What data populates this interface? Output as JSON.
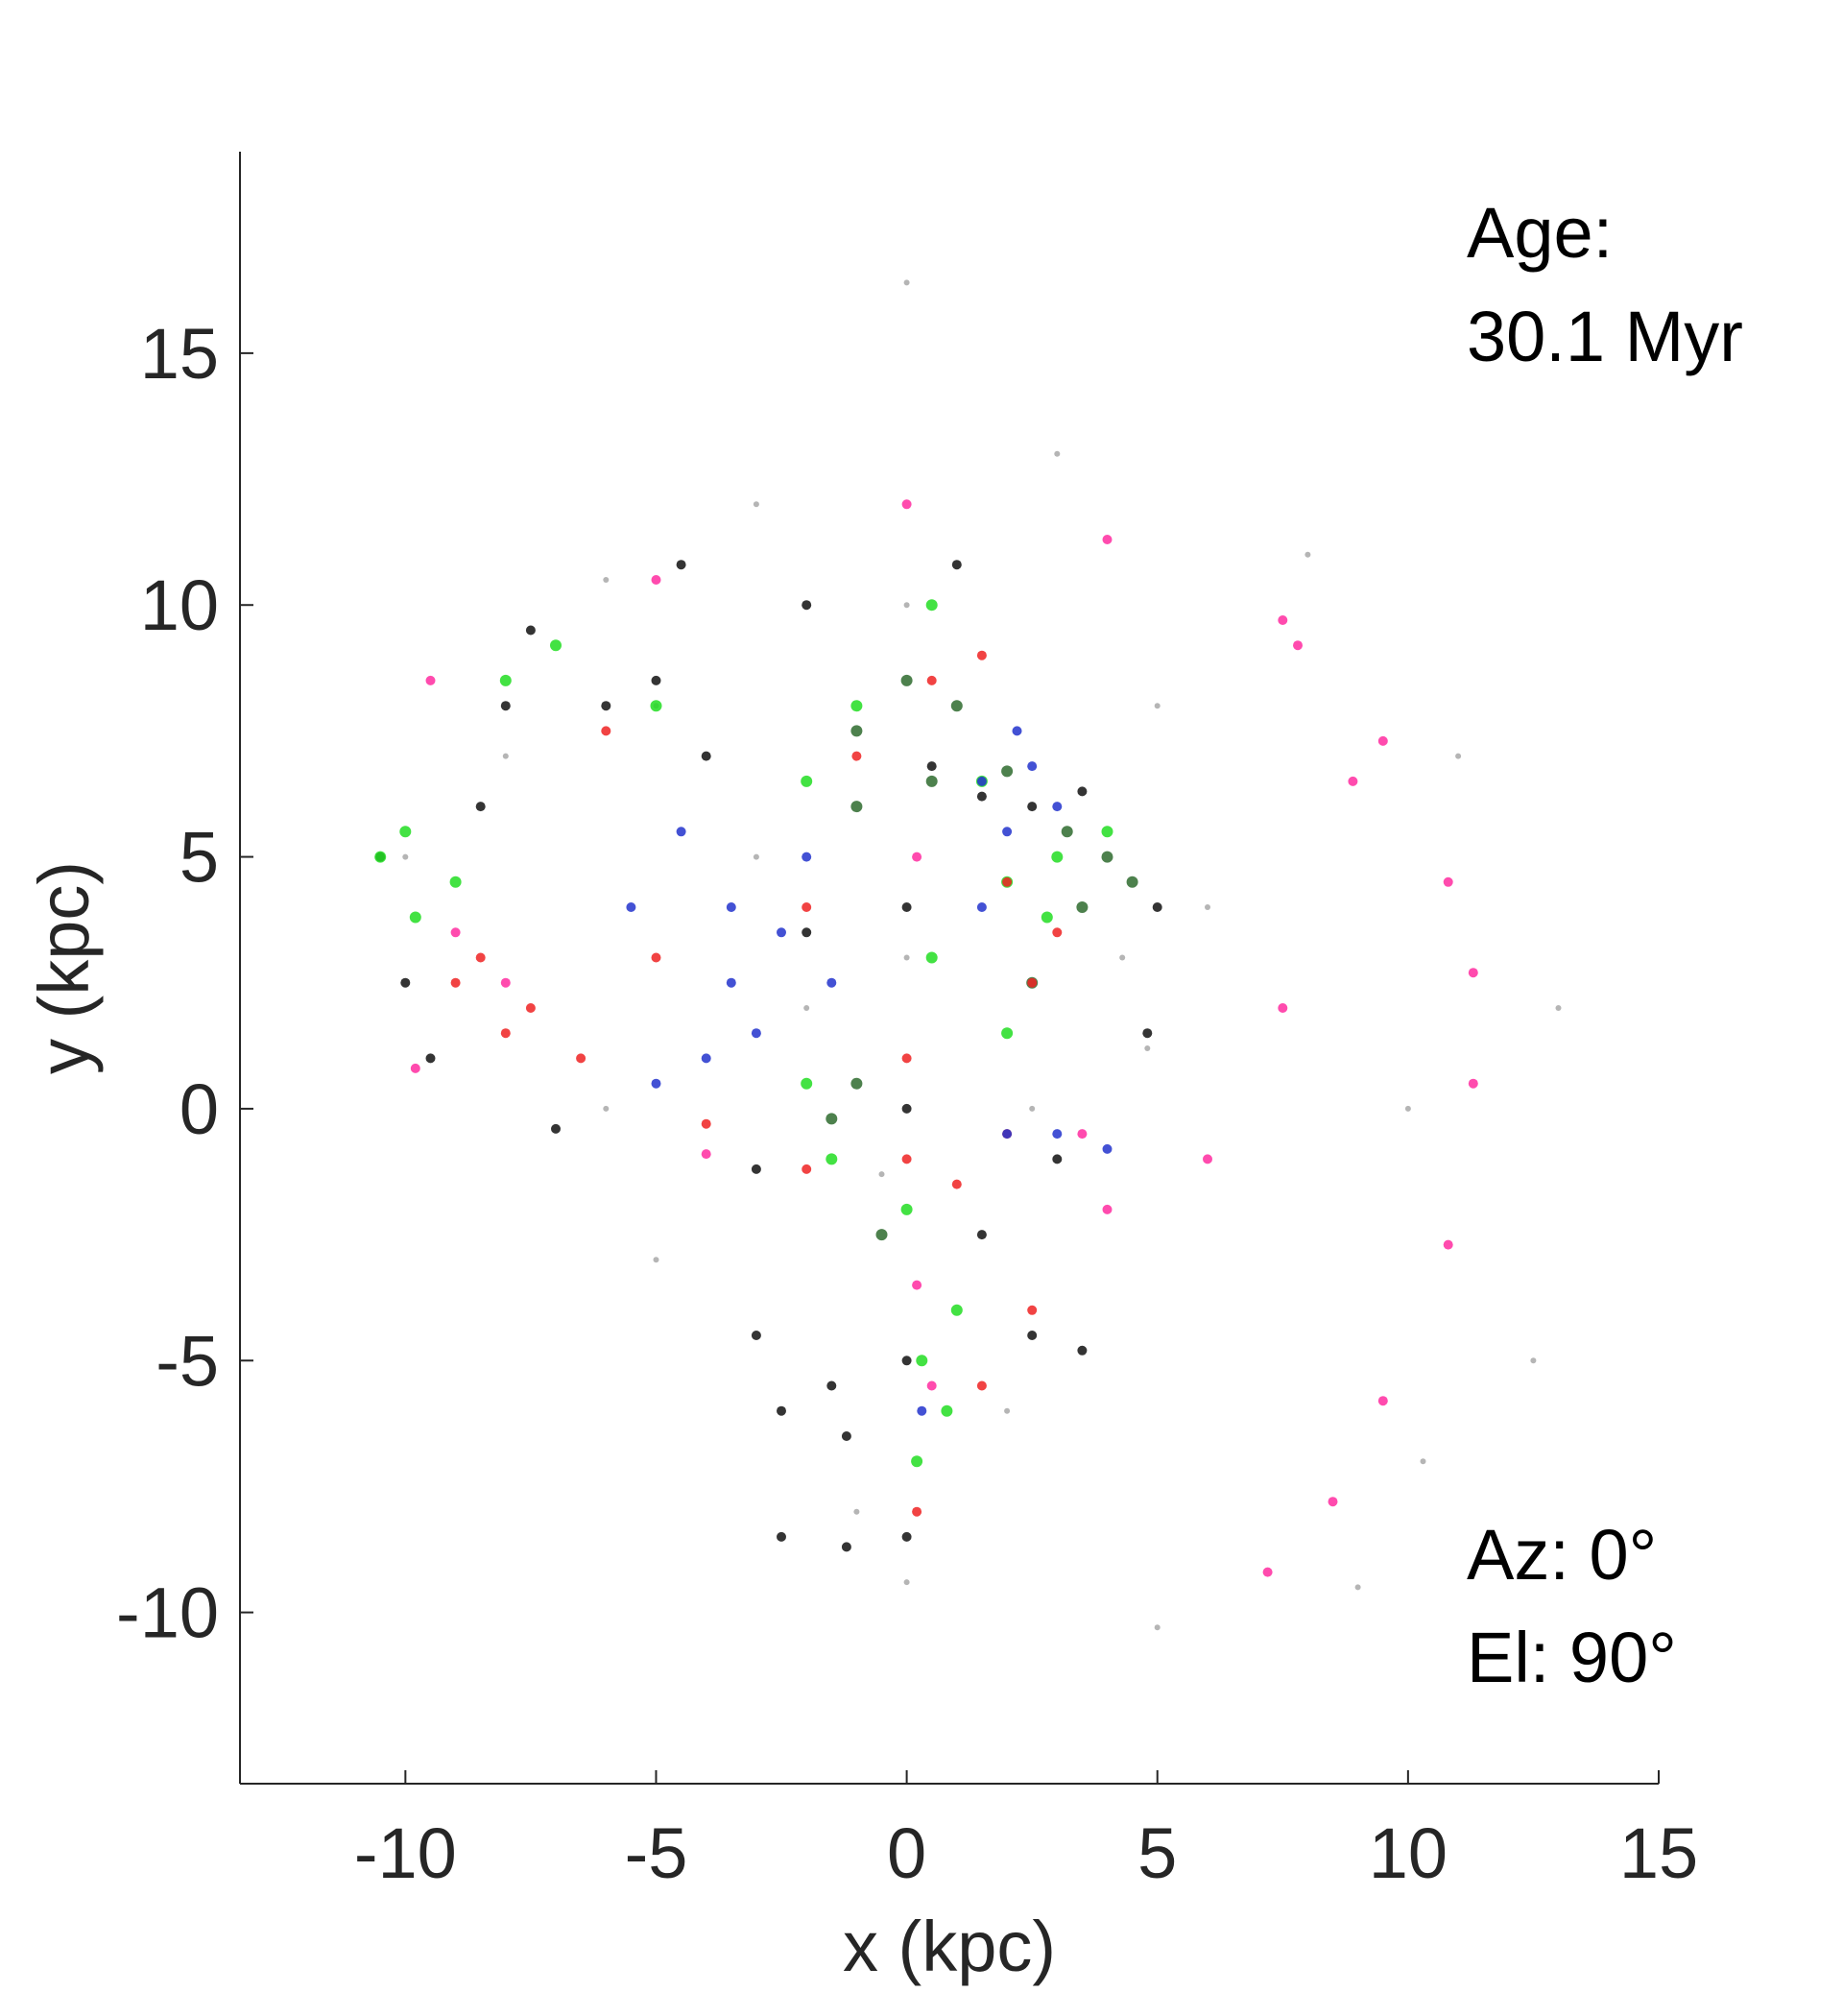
{
  "chart_data": {
    "type": "scatter",
    "title": "",
    "xlabel": "x (kpc)",
    "ylabel": "y (kpc)",
    "xlim": [
      -13.3,
      15
    ],
    "ylim": [
      -13.4,
      19
    ],
    "xticks": [
      -10,
      -5,
      0,
      5,
      10,
      15
    ],
    "xtick_labels": [
      "-10",
      "-5",
      "0",
      "5",
      "10",
      "15"
    ],
    "yticks": [
      -10,
      -5,
      0,
      5,
      10,
      15
    ],
    "ytick_labels": [
      "-10",
      "-5",
      "0",
      "5",
      "10",
      "15"
    ],
    "grid": false,
    "legend": "none",
    "annotations": {
      "age_label": "Age:",
      "age_value": "30.1 Myr",
      "azimuth": "Az: 0°",
      "elevation": "El: 90°"
    },
    "colors": {
      "gray": "#a8a8a8",
      "pink": "#ff2ba0",
      "black": "#111111",
      "green": "#22dd22",
      "dark_green": "#2e6b2e",
      "red": "#ee2222",
      "blue": "#2233cc",
      "axis": "#262626"
    },
    "series": [
      {
        "color": "gray",
        "values": [
          [
            0.0,
            16.4
          ],
          [
            0.0,
            -9.4
          ],
          [
            0.0,
            3.0
          ],
          [
            0.0,
            10.0
          ],
          [
            -0.5,
            -1.3
          ],
          [
            -5.0,
            8.0
          ],
          [
            -2.0,
            2.0
          ],
          [
            -10.0,
            5.0
          ],
          [
            -6.0,
            10.5
          ],
          [
            3.0,
            13.0
          ],
          [
            8.0,
            11.0
          ],
          [
            11.0,
            7.0
          ],
          [
            13.0,
            2.0
          ],
          [
            12.5,
            -5.0
          ],
          [
            9.0,
            -9.5
          ],
          [
            5.0,
            -10.3
          ],
          [
            -1.0,
            -8.0
          ],
          [
            -5.0,
            -3.0
          ],
          [
            4.8,
            1.2
          ],
          [
            4.3,
            3.0
          ],
          [
            6.0,
            4.0
          ],
          [
            5.0,
            8.0
          ],
          [
            -3.0,
            12.0
          ],
          [
            10.0,
            0.0
          ],
          [
            -8.0,
            7.0
          ],
          [
            2.0,
            -6.0
          ],
          [
            -3.0,
            5.0
          ],
          [
            2.5,
            0.0
          ],
          [
            -6.0,
            0.0
          ],
          [
            10.3,
            -7.0
          ]
        ]
      },
      {
        "color": "pink",
        "values": [
          [
            -9.5,
            8.5
          ],
          [
            -5.0,
            10.5
          ],
          [
            0.0,
            12.0
          ],
          [
            4.0,
            11.3
          ],
          [
            7.5,
            9.7
          ],
          [
            9.5,
            7.3
          ],
          [
            10.8,
            4.5
          ],
          [
            11.3,
            2.7
          ],
          [
            7.8,
            9.2
          ],
          [
            8.9,
            6.5
          ],
          [
            7.5,
            2.0
          ],
          [
            6.0,
            -1.0
          ],
          [
            4.0,
            -2.0
          ],
          [
            11.3,
            0.5
          ],
          [
            10.8,
            -2.7
          ],
          [
            9.5,
            -5.8
          ],
          [
            8.5,
            -7.8
          ],
          [
            7.2,
            -9.2
          ],
          [
            0.2,
            -3.5
          ],
          [
            0.5,
            -5.5
          ],
          [
            3.5,
            -0.5
          ],
          [
            0.2,
            5.0
          ],
          [
            -8.0,
            2.5
          ],
          [
            -4.0,
            -0.9
          ],
          [
            -9.0,
            3.5
          ],
          [
            -9.8,
            0.8
          ]
        ]
      },
      {
        "color": "black",
        "values": [
          [
            0.0,
            -8.5
          ],
          [
            0.0,
            -5.0
          ],
          [
            0.0,
            0.0
          ],
          [
            0.0,
            4.0
          ],
          [
            -4.5,
            10.8
          ],
          [
            -5.0,
            8.5
          ],
          [
            -4.0,
            7.0
          ],
          [
            -7.5,
            9.5
          ],
          [
            -8.0,
            8.0
          ],
          [
            -2.0,
            10.0
          ],
          [
            1.0,
            10.8
          ],
          [
            -10.5,
            5.0
          ],
          [
            -10.0,
            2.5
          ],
          [
            -9.5,
            1.0
          ],
          [
            -7.0,
            -0.4
          ],
          [
            -3.0,
            -1.2
          ],
          [
            0.5,
            6.8
          ],
          [
            1.5,
            6.2
          ],
          [
            2.5,
            6.0
          ],
          [
            3.5,
            6.3
          ],
          [
            5.0,
            4.0
          ],
          [
            4.8,
            1.5
          ],
          [
            3.0,
            -1.0
          ],
          [
            1.5,
            -2.5
          ],
          [
            -3.0,
            -4.5
          ],
          [
            -1.5,
            -5.5
          ],
          [
            -2.5,
            -6.0
          ],
          [
            -1.2,
            -6.5
          ],
          [
            2.5,
            -4.5
          ],
          [
            3.5,
            -4.8
          ],
          [
            -2.5,
            -8.5
          ],
          [
            -1.2,
            -8.7
          ],
          [
            -6.0,
            8.0
          ],
          [
            -8.5,
            6.0
          ],
          [
            -2.0,
            3.5
          ]
        ]
      },
      {
        "color": "green",
        "values": [
          [
            0.2,
            -7.0
          ],
          [
            0.3,
            -5.0
          ],
          [
            0.0,
            -2.0
          ],
          [
            -10.0,
            5.5
          ],
          [
            -10.5,
            5.0
          ],
          [
            -9.8,
            3.8
          ],
          [
            -7.0,
            9.2
          ],
          [
            -5.0,
            8.0
          ],
          [
            -1.0,
            8.0
          ],
          [
            1.5,
            6.5
          ],
          [
            2.0,
            4.5
          ],
          [
            0.5,
            3.0
          ],
          [
            2.0,
            1.5
          ],
          [
            -2.0,
            0.5
          ],
          [
            -1.5,
            -1.0
          ],
          [
            3.0,
            5.0
          ],
          [
            4.0,
            5.5
          ],
          [
            -8.0,
            8.5
          ],
          [
            0.5,
            10.0
          ],
          [
            -2.0,
            6.5
          ],
          [
            1.0,
            -4.0
          ],
          [
            0.8,
            -6.0
          ],
          [
            -9.0,
            4.5
          ],
          [
            2.8,
            3.8
          ]
        ]
      },
      {
        "color": "dark_green",
        "values": [
          [
            -1.0,
            7.5
          ],
          [
            0.0,
            8.5
          ],
          [
            1.0,
            8.0
          ],
          [
            3.2,
            5.5
          ],
          [
            4.0,
            5.0
          ],
          [
            -1.0,
            0.5
          ],
          [
            -1.5,
            -0.2
          ],
          [
            -0.5,
            -2.5
          ],
          [
            2.5,
            2.5
          ],
          [
            3.5,
            4.0
          ],
          [
            -1.0,
            6.0
          ],
          [
            0.5,
            6.5
          ],
          [
            2.0,
            6.7
          ],
          [
            4.5,
            4.5
          ]
        ]
      },
      {
        "color": "red",
        "values": [
          [
            0.0,
            1.0
          ],
          [
            0.0,
            -1.0
          ],
          [
            0.2,
            -8.0
          ],
          [
            -9.0,
            2.5
          ],
          [
            -8.0,
            1.5
          ],
          [
            -7.5,
            2.0
          ],
          [
            -5.0,
            3.0
          ],
          [
            -4.0,
            -0.3
          ],
          [
            -2.0,
            -1.2
          ],
          [
            1.0,
            -1.5
          ],
          [
            2.0,
            -0.5
          ],
          [
            2.5,
            2.5
          ],
          [
            3.0,
            3.5
          ],
          [
            2.0,
            4.5
          ],
          [
            -1.0,
            7.0
          ],
          [
            0.5,
            8.5
          ],
          [
            1.5,
            9.0
          ],
          [
            -2.0,
            4.0
          ],
          [
            2.5,
            -4.0
          ],
          [
            1.5,
            -5.5
          ],
          [
            -6.0,
            7.5
          ],
          [
            -6.5,
            1.0
          ],
          [
            -8.5,
            3.0
          ]
        ]
      },
      {
        "color": "blue",
        "values": [
          [
            -5.0,
            0.5
          ],
          [
            -4.0,
            1.0
          ],
          [
            -3.0,
            1.5
          ],
          [
            -2.5,
            3.5
          ],
          [
            -3.5,
            4.0
          ],
          [
            -1.5,
            2.5
          ],
          [
            1.5,
            6.5
          ],
          [
            2.5,
            6.8
          ],
          [
            3.0,
            6.0
          ],
          [
            2.0,
            5.5
          ],
          [
            1.5,
            4.0
          ],
          [
            2.0,
            -0.5
          ],
          [
            3.0,
            -0.5
          ],
          [
            4.0,
            -0.8
          ],
          [
            -4.5,
            5.5
          ],
          [
            -5.5,
            4.0
          ],
          [
            -3.5,
            2.5
          ],
          [
            -2.0,
            5.0
          ],
          [
            2.2,
            7.5
          ],
          [
            0.3,
            -6.0
          ]
        ]
      }
    ]
  }
}
